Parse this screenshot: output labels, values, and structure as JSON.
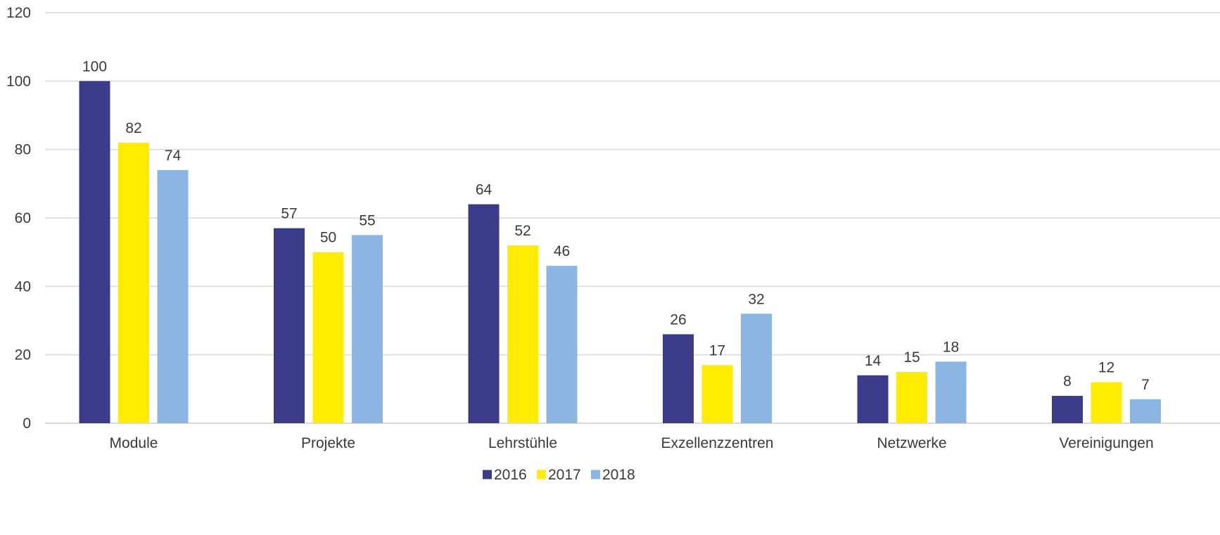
{
  "chart_data": {
    "type": "bar",
    "categories": [
      "Module",
      "Projekte",
      "Lehrstühle",
      "Exzellenzzentren",
      "Netzwerke",
      "Vereinigungen"
    ],
    "series": [
      {
        "name": "2016",
        "color": "#3b3b8c",
        "values": [
          100,
          57,
          64,
          26,
          14,
          8
        ]
      },
      {
        "name": "2017",
        "color": "#ffec00",
        "values": [
          82,
          50,
          52,
          17,
          15,
          12
        ]
      },
      {
        "name": "2018",
        "color": "#8bb5e3",
        "values": [
          74,
          55,
          46,
          32,
          18,
          7
        ]
      }
    ],
    "ylim": [
      0,
      120
    ],
    "yticks": [
      0,
      20,
      40,
      60,
      80,
      100,
      120
    ],
    "title": "",
    "xlabel": "",
    "ylabel": "",
    "grid": true,
    "legend_position": "bottom",
    "data_labels": true
  }
}
